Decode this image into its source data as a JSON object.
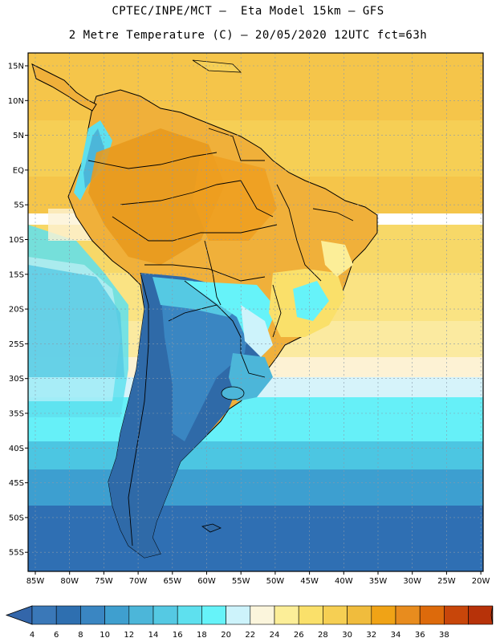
{
  "title": {
    "line1": "CPTEC/INPE/MCT –  Eta Model 15km – GFS",
    "line2": "2 Metre Temperature (C) – 20/05/2020 12UTC fct=63h"
  },
  "axes": {
    "lat_labels": [
      "15N",
      "10N",
      "5N",
      "EQ",
      "5S",
      "10S",
      "15S",
      "20S",
      "25S",
      "30S",
      "35S",
      "40S",
      "45S",
      "50S",
      "55S"
    ],
    "lon_labels": [
      "85W",
      "80W",
      "75W",
      "70W",
      "65W",
      "60W",
      "55W",
      "50W",
      "45W",
      "40W",
      "35W",
      "30W",
      "25W",
      "20W"
    ]
  },
  "colorbar": {
    "labels": [
      "4",
      "6",
      "8",
      "10",
      "12",
      "14",
      "16",
      "18",
      "20",
      "22",
      "24",
      "26",
      "28",
      "30",
      "32",
      "34",
      "36",
      "38"
    ],
    "colors": [
      "#3a78b8",
      "#2e6fb0",
      "#3a86c2",
      "#3f9fcf",
      "#4cb6d9",
      "#55c9e3",
      "#5ee0ee",
      "#66f3f9",
      "#cdf3fb",
      "#fbf5dc",
      "#fcee98",
      "#fae06a",
      "#f6cf53",
      "#f0bc3d",
      "#f0a316",
      "#e88c1e",
      "#dd6a0b",
      "#c8460a",
      "#b73209"
    ],
    "under_color": "#3366aa",
    "over_color": "#b23008"
  },
  "colors": {
    "ocean_tropical": "#f7cd55",
    "ocean_subtropical": "#f9e27a",
    "ocean_mid": "#5ee0ee",
    "ocean_south": "#2f6fb3",
    "land_hot": "#f0b03a",
    "land_cold": "#2f6aa8",
    "land_andes": "#4ab8dc",
    "border": "#000000"
  }
}
